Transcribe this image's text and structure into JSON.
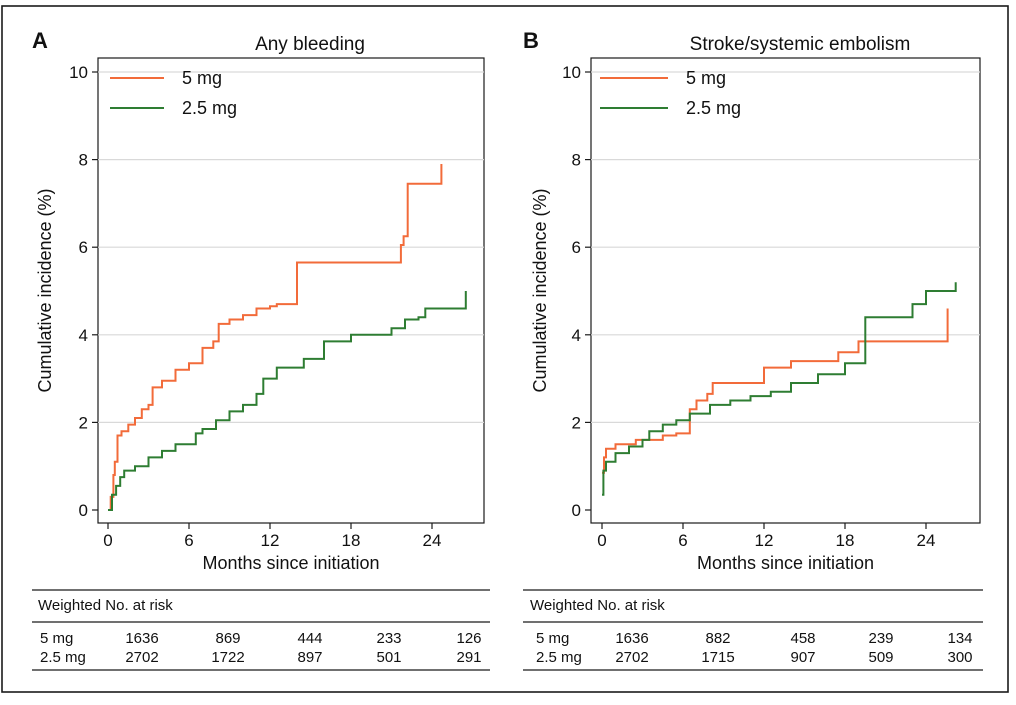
{
  "figure": {
    "outer_border_color": "#1a1a1a"
  },
  "chart_data": [
    {
      "type": "line",
      "panel_label": "A",
      "title": "Any bleeding",
      "xlabel": "Months since initiation",
      "ylabel": "Cumulative incidence (%)",
      "xlim": [
        0,
        27
      ],
      "ylim": [
        0,
        10
      ],
      "x_ticks": [
        0,
        6,
        12,
        18,
        24
      ],
      "y_ticks": [
        0,
        2,
        4,
        6,
        8,
        10
      ],
      "grid": "horizontal",
      "step": true,
      "legend": {
        "position": "top-left"
      },
      "series": [
        {
          "name": "5 mg",
          "color": "#f26b3a",
          "points": [
            [
              0,
              0
            ],
            [
              0.2,
              0.3
            ],
            [
              0.4,
              0.8
            ],
            [
              0.5,
              1.1
            ],
            [
              0.7,
              1.7
            ],
            [
              1.0,
              1.8
            ],
            [
              1.5,
              1.95
            ],
            [
              2.0,
              2.1
            ],
            [
              2.5,
              2.3
            ],
            [
              3.0,
              2.4
            ],
            [
              3.3,
              2.8
            ],
            [
              4.0,
              2.95
            ],
            [
              5.0,
              3.2
            ],
            [
              6.0,
              3.35
            ],
            [
              7.0,
              3.7
            ],
            [
              7.8,
              3.85
            ],
            [
              8.2,
              4.25
            ],
            [
              9.0,
              4.35
            ],
            [
              10.0,
              4.45
            ],
            [
              11.0,
              4.6
            ],
            [
              12.0,
              4.65
            ],
            [
              12.5,
              4.7
            ],
            [
              14.0,
              5.65
            ],
            [
              21.7,
              6.05
            ],
            [
              21.9,
              6.25
            ],
            [
              22.2,
              7.45
            ],
            [
              24.0,
              7.45
            ],
            [
              24.7,
              7.9
            ]
          ]
        },
        {
          "name": "2.5 mg",
          "color": "#2e7d32",
          "points": [
            [
              0,
              0
            ],
            [
              0.3,
              0.35
            ],
            [
              0.6,
              0.55
            ],
            [
              0.9,
              0.75
            ],
            [
              1.2,
              0.9
            ],
            [
              2.0,
              1.0
            ],
            [
              3.0,
              1.2
            ],
            [
              4.0,
              1.35
            ],
            [
              5.0,
              1.5
            ],
            [
              6.5,
              1.75
            ],
            [
              7.0,
              1.85
            ],
            [
              8.0,
              2.05
            ],
            [
              9.0,
              2.25
            ],
            [
              10.0,
              2.4
            ],
            [
              11.0,
              2.65
            ],
            [
              11.5,
              3.0
            ],
            [
              12.5,
              3.25
            ],
            [
              14.5,
              3.45
            ],
            [
              16.0,
              3.85
            ],
            [
              18.0,
              4.0
            ],
            [
              21.0,
              4.15
            ],
            [
              22.0,
              4.35
            ],
            [
              23.0,
              4.4
            ],
            [
              23.5,
              4.6
            ],
            [
              26.0,
              4.6
            ],
            [
              26.5,
              5.0
            ]
          ]
        }
      ],
      "risk_table": {
        "title": "Weighted No. at risk",
        "rows": [
          {
            "label": "5 mg",
            "values": [
              "1636",
              "869",
              "444",
              "233",
              "126"
            ]
          },
          {
            "label": "2.5 mg",
            "values": [
              "2702",
              "1722",
              "897",
              "501",
              "291"
            ]
          }
        ]
      }
    },
    {
      "type": "line",
      "panel_label": "B",
      "title": "Stroke/systemic embolism",
      "xlabel": "Months since initiation",
      "ylabel": "Cumulative incidence (%)",
      "xlim": [
        0,
        27
      ],
      "ylim": [
        0,
        10
      ],
      "x_ticks": [
        0,
        6,
        12,
        18,
        24
      ],
      "y_ticks": [
        0,
        2,
        4,
        6,
        8,
        10
      ],
      "grid": "horizontal",
      "step": true,
      "legend": {
        "position": "top-left"
      },
      "series": [
        {
          "name": "5 mg",
          "color": "#f26b3a",
          "points": [
            [
              0,
              0.85
            ],
            [
              0.15,
              1.2
            ],
            [
              0.3,
              1.4
            ],
            [
              1.0,
              1.5
            ],
            [
              2.5,
              1.6
            ],
            [
              4.5,
              1.7
            ],
            [
              5.5,
              1.75
            ],
            [
              6.5,
              2.3
            ],
            [
              7.0,
              2.5
            ],
            [
              7.8,
              2.65
            ],
            [
              8.2,
              2.9
            ],
            [
              10.0,
              2.9
            ],
            [
              12.0,
              3.25
            ],
            [
              14.0,
              3.4
            ],
            [
              17.5,
              3.6
            ],
            [
              19.0,
              3.85
            ],
            [
              25.5,
              3.85
            ],
            [
              25.6,
              4.6
            ]
          ]
        },
        {
          "name": "2.5 mg",
          "color": "#2e7d32",
          "points": [
            [
              0,
              0.35
            ],
            [
              0.1,
              0.9
            ],
            [
              0.3,
              1.1
            ],
            [
              1.0,
              1.3
            ],
            [
              2.0,
              1.45
            ],
            [
              3.0,
              1.6
            ],
            [
              3.5,
              1.8
            ],
            [
              4.5,
              1.95
            ],
            [
              5.5,
              2.05
            ],
            [
              6.5,
              2.2
            ],
            [
              8.0,
              2.4
            ],
            [
              9.5,
              2.5
            ],
            [
              11.0,
              2.6
            ],
            [
              12.5,
              2.7
            ],
            [
              14.0,
              2.9
            ],
            [
              16.0,
              3.1
            ],
            [
              18.0,
              3.35
            ],
            [
              19.5,
              4.4
            ],
            [
              23.0,
              4.7
            ],
            [
              24.0,
              5.0
            ],
            [
              26.0,
              5.0
            ],
            [
              26.2,
              5.2
            ]
          ]
        }
      ],
      "risk_table": {
        "title": "Weighted No. at risk",
        "rows": [
          {
            "label": "5 mg",
            "values": [
              "1636",
              "882",
              "458",
              "239",
              "134"
            ]
          },
          {
            "label": "2.5 mg",
            "values": [
              "2702",
              "1715",
              "907",
              "509",
              "300"
            ]
          }
        ]
      }
    }
  ]
}
